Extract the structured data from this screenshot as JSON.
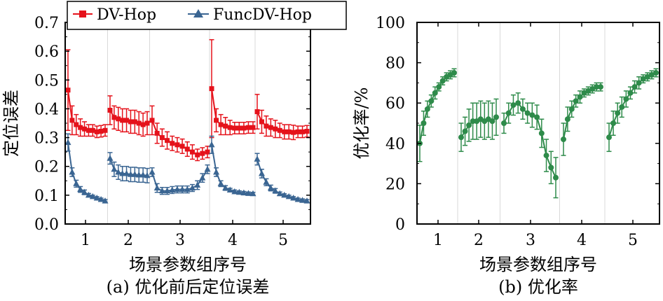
{
  "colors": {
    "dv_hop": "#e5121b",
    "func_dv_hop": "#3a6592",
    "rate": "#2e8b4a",
    "group_line": "#d9d9d9"
  },
  "chart_data": [
    {
      "type": "line",
      "caption": "(a) 优化前后定位误差",
      "xlabel": "场景参数组序号",
      "ylabel": "定位误差",
      "ylim": [
        0,
        0.7
      ],
      "yticks": [
        "0.0",
        "0.1",
        "0.2",
        "0.3",
        "0.4",
        "0.5",
        "0.6",
        "0.7"
      ],
      "xticks": [
        "1",
        "2",
        "3",
        "4",
        "5"
      ],
      "legend_position": "top",
      "error_bars": true,
      "series": [
        {
          "name": "DV-Hop",
          "groups": [
            {
              "values": [
                0.465,
                0.36,
                0.345,
                0.335,
                0.33,
                0.325,
                0.325,
                0.32,
                0.322,
                0.325
              ],
              "errors": [
                0.14,
                0.05,
                0.035,
                0.03,
                0.025,
                0.02,
                0.02,
                0.02,
                0.02,
                0.02
              ]
            },
            {
              "values": [
                0.395,
                0.37,
                0.365,
                0.36,
                0.36,
                0.355,
                0.355,
                0.35,
                0.345,
                0.35
              ],
              "errors": [
                0.05,
                0.04,
                0.04,
                0.04,
                0.04,
                0.04,
                0.04,
                0.04,
                0.04,
                0.04
              ]
            },
            {
              "values": [
                0.36,
                0.315,
                0.3,
                0.29,
                0.28,
                0.275,
                0.27,
                0.26,
                0.25,
                0.24,
                0.245,
                0.25
              ],
              "errors": [
                0.05,
                0.035,
                0.03,
                0.03,
                0.025,
                0.025,
                0.025,
                0.025,
                0.025,
                0.02,
                0.02,
                0.02
              ]
            },
            {
              "values": [
                0.47,
                0.36,
                0.345,
                0.34,
                0.335,
                0.333,
                0.333,
                0.333,
                0.335,
                0.335
              ],
              "errors": [
                0.17,
                0.04,
                0.035,
                0.03,
                0.025,
                0.02,
                0.02,
                0.02,
                0.02,
                0.02
              ]
            },
            {
              "values": [
                0.39,
                0.355,
                0.34,
                0.335,
                0.33,
                0.325,
                0.32,
                0.32,
                0.318,
                0.32,
                0.32,
                0.322
              ],
              "errors": [
                0.06,
                0.04,
                0.035,
                0.03,
                0.03,
                0.025,
                0.025,
                0.025,
                0.025,
                0.02,
                0.02,
                0.02
              ]
            }
          ]
        },
        {
          "name": "FuncDV-Hop",
          "groups": [
            {
              "values": [
                0.283,
                0.18,
                0.14,
                0.12,
                0.11,
                0.1,
                0.095,
                0.09,
                0.085,
                0.08
              ],
              "errors": [
                0.03,
                0.015,
                0.012,
                0.01,
                0.008,
                0.006,
                0.005,
                0.005,
                0.005,
                0.005
              ]
            },
            {
              "values": [
                0.228,
                0.19,
                0.18,
                0.175,
                0.175,
                0.172,
                0.172,
                0.17,
                0.17,
                0.168
              ],
              "errors": [
                0.02,
                0.025,
                0.025,
                0.025,
                0.025,
                0.025,
                0.025,
                0.025,
                0.025,
                0.025
              ]
            },
            {
              "values": [
                0.18,
                0.125,
                0.115,
                0.115,
                0.118,
                0.12,
                0.12,
                0.12,
                0.125,
                0.135,
                0.16,
                0.19
              ],
              "errors": [
                0.015,
                0.015,
                0.012,
                0.012,
                0.012,
                0.012,
                0.012,
                0.012,
                0.012,
                0.015,
                0.015,
                0.015
              ]
            },
            {
              "values": [
                0.275,
                0.18,
                0.14,
                0.125,
                0.118,
                0.112,
                0.11,
                0.108,
                0.106,
                0.105
              ],
              "errors": [
                0.03,
                0.015,
                0.01,
                0.008,
                0.006,
                0.006,
                0.005,
                0.005,
                0.005,
                0.005
              ]
            },
            {
              "values": [
                0.225,
                0.175,
                0.145,
                0.125,
                0.115,
                0.105,
                0.1,
                0.095,
                0.09,
                0.085,
                0.082,
                0.08
              ],
              "errors": [
                0.02,
                0.015,
                0.012,
                0.01,
                0.008,
                0.006,
                0.005,
                0.005,
                0.005,
                0.005,
                0.005,
                0.005
              ]
            }
          ]
        }
      ]
    },
    {
      "type": "line",
      "caption": "(b) 优化率",
      "xlabel": "场景参数组序号",
      "ylabel": "优化率/%",
      "ylim": [
        0,
        100
      ],
      "yticks": [
        "0",
        "20",
        "40",
        "60",
        "80",
        "100"
      ],
      "xticks": [
        "1",
        "2",
        "3",
        "4",
        "5"
      ],
      "error_bars": true,
      "series": [
        {
          "name": "",
          "groups": [
            {
              "values": [
                40,
                50,
                57,
                61,
                65,
                68,
                71,
                73,
                74,
                75
              ],
              "errors": [
                9,
                6,
                4,
                3,
                3,
                2,
                2,
                2,
                2,
                2
              ]
            },
            {
              "values": [
                43,
                46,
                49,
                51,
                51,
                52,
                51,
                52,
                51,
                53
              ],
              "errors": [
                7,
                7,
                8,
                9,
                9,
                9,
                9,
                9,
                9,
                9
              ]
            },
            {
              "values": [
                50,
                55,
                59,
                60,
                57,
                55,
                54,
                53,
                45,
                34,
                28,
                23
              ],
              "errors": [
                5,
                5,
                5,
                5,
                5,
                5,
                6,
                6,
                7,
                8,
                8,
                10
              ]
            },
            {
              "values": [
                42,
                52,
                57,
                61,
                63,
                65,
                66,
                67,
                68,
                68
              ],
              "errors": [
                8,
                6,
                4,
                3,
                3,
                2,
                2,
                2,
                2,
                2
              ]
            },
            {
              "values": [
                43,
                50,
                55,
                58,
                62,
                65,
                68,
                70,
                72,
                73,
                74,
                75
              ],
              "errors": [
                7,
                6,
                5,
                5,
                4,
                3,
                3,
                3,
                2,
                2,
                2,
                2
              ]
            }
          ]
        }
      ]
    }
  ]
}
